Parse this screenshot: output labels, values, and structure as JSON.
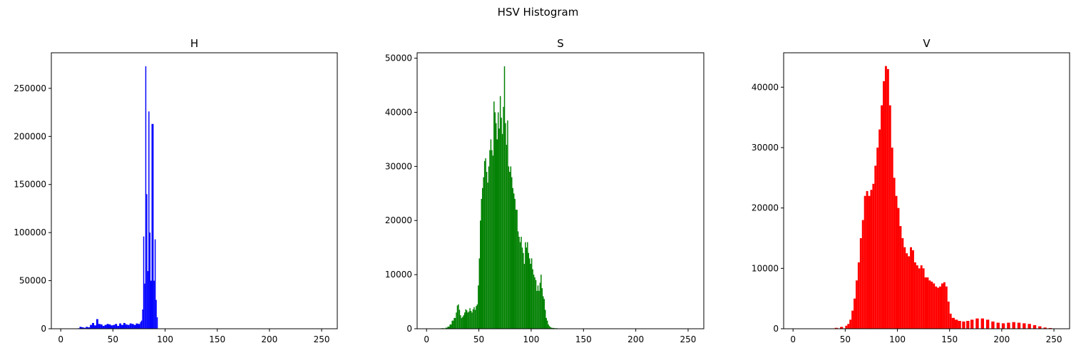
{
  "figure": {
    "suptitle": "HSV Histogram"
  },
  "chart_data": [
    {
      "type": "bar",
      "title": "H",
      "color": "#0000ff",
      "xlim": [
        -9,
        265
      ],
      "ylim": [
        0,
        287000
      ],
      "xticks": [
        0,
        50,
        100,
        150,
        200,
        250
      ],
      "yticks": [
        0,
        50000,
        100000,
        150000,
        200000,
        250000
      ],
      "grid": false,
      "x": [
        16,
        18,
        20,
        22,
        24,
        26,
        28,
        30,
        32,
        34,
        36,
        38,
        40,
        42,
        44,
        46,
        48,
        50,
        52,
        54,
        56,
        58,
        60,
        62,
        64,
        66,
        68,
        70,
        72,
        74,
        76,
        77,
        78,
        79,
        80,
        81,
        82,
        83,
        84,
        85,
        86,
        87,
        88,
        89,
        90,
        91,
        92
      ],
      "values": [
        500,
        2000,
        1500,
        1000,
        2000,
        1500,
        4000,
        6000,
        3500,
        10000,
        5000,
        4500,
        3000,
        4000,
        5000,
        4500,
        3500,
        4000,
        5000,
        3000,
        5500,
        4000,
        6000,
        4500,
        4000,
        5500,
        5000,
        4000,
        5500,
        5000,
        7000,
        8500,
        20000,
        96000,
        47000,
        273000,
        140000,
        60000,
        226000,
        100000,
        50000,
        213000,
        213000,
        50000,
        93000,
        30000,
        12000
      ]
    },
    {
      "type": "bar",
      "title": "S",
      "color": "#008000",
      "xlim": [
        -9,
        265
      ],
      "ylim": [
        0,
        51000
      ],
      "xticks": [
        0,
        50,
        100,
        150,
        200,
        250
      ],
      "yticks": [
        0,
        10000,
        20000,
        30000,
        40000,
        50000
      ],
      "grid": false,
      "x": [
        10,
        14,
        18,
        20,
        22,
        24,
        26,
        28,
        29,
        30,
        31,
        32,
        33,
        34,
        35,
        36,
        37,
        38,
        39,
        40,
        41,
        42,
        43,
        44,
        45,
        46,
        47,
        48,
        49,
        50,
        51,
        52,
        53,
        54,
        55,
        56,
        57,
        58,
        59,
        60,
        61,
        62,
        63,
        64,
        65,
        66,
        67,
        68,
        69,
        70,
        71,
        72,
        73,
        74,
        75,
        76,
        77,
        78,
        79,
        80,
        81,
        82,
        83,
        84,
        85,
        86,
        87,
        88,
        89,
        90,
        91,
        92,
        93,
        94,
        95,
        96,
        97,
        98,
        99,
        100,
        101,
        102,
        103,
        104,
        105,
        106,
        107,
        108,
        109,
        110,
        111,
        112,
        113,
        114,
        115,
        116,
        117,
        118,
        119,
        120,
        122,
        125,
        128,
        132,
        136,
        140
      ],
      "values": [
        50,
        100,
        200,
        400,
        800,
        1500,
        2000,
        3000,
        4300,
        4500,
        3500,
        2500,
        2000,
        2200,
        2500,
        3000,
        3600,
        3400,
        3000,
        3200,
        3800,
        3300,
        3000,
        3600,
        4000,
        3500,
        4200,
        4500,
        8000,
        13000,
        20000,
        24000,
        26000,
        28000,
        31000,
        31500,
        29000,
        27000,
        30000,
        33000,
        35000,
        33000,
        32000,
        42000,
        40000,
        38000,
        35000,
        40000,
        37000,
        43000,
        39000,
        36000,
        41000,
        48500,
        38000,
        34000,
        38500,
        30000,
        29000,
        30000,
        28000,
        26000,
        25000,
        24000,
        22000,
        22000,
        18000,
        17000,
        16000,
        17000,
        15000,
        14000,
        12000,
        16000,
        15000,
        16000,
        14000,
        13000,
        12000,
        13000,
        11000,
        10000,
        9500,
        9000,
        7000,
        8000,
        7000,
        8500,
        10000,
        7500,
        6000,
        5500,
        3500,
        2000,
        1500,
        800,
        500,
        300,
        200,
        150,
        100,
        60,
        40,
        20,
        10,
        5
      ]
    },
    {
      "type": "bar",
      "title": "V",
      "color": "#ff0000",
      "xlim": [
        -9,
        265
      ],
      "ylim": [
        0,
        45700
      ],
      "xticks": [
        0,
        50,
        100,
        150,
        200,
        250
      ],
      "yticks": [
        0,
        10000,
        20000,
        30000,
        40000
      ],
      "grid": false,
      "x": [
        20,
        30,
        40,
        45,
        50,
        52,
        54,
        56,
        58,
        60,
        62,
        64,
        66,
        68,
        70,
        72,
        74,
        76,
        78,
        80,
        82,
        84,
        86,
        88,
        90,
        92,
        94,
        96,
        98,
        100,
        102,
        104,
        106,
        108,
        110,
        112,
        114,
        116,
        118,
        120,
        122,
        124,
        126,
        128,
        130,
        132,
        134,
        136,
        138,
        140,
        142,
        144,
        146,
        148,
        150,
        152,
        155,
        158,
        162,
        166,
        170,
        175,
        180,
        185,
        190,
        195,
        200,
        205,
        210,
        215,
        220,
        225,
        230,
        235,
        240,
        245,
        250,
        255
      ],
      "values": [
        30,
        60,
        150,
        300,
        500,
        800,
        1500,
        3000,
        5000,
        8000,
        11000,
        15000,
        18000,
        22000,
        22800,
        22000,
        23000,
        24000,
        27000,
        30000,
        33000,
        37000,
        41000,
        43500,
        43000,
        37000,
        30000,
        25000,
        22000,
        20000,
        17000,
        15000,
        13500,
        12500,
        12000,
        13500,
        13000,
        11000,
        10500,
        10000,
        10500,
        10000,
        8500,
        8500,
        8000,
        7800,
        7500,
        7000,
        6800,
        7000,
        7500,
        7700,
        7000,
        4500,
        2500,
        1800,
        1500,
        1300,
        1200,
        1300,
        1500,
        1700,
        1700,
        1500,
        1200,
        1000,
        900,
        1000,
        1100,
        1000,
        900,
        800,
        600,
        400,
        200,
        120,
        60,
        20
      ]
    }
  ]
}
